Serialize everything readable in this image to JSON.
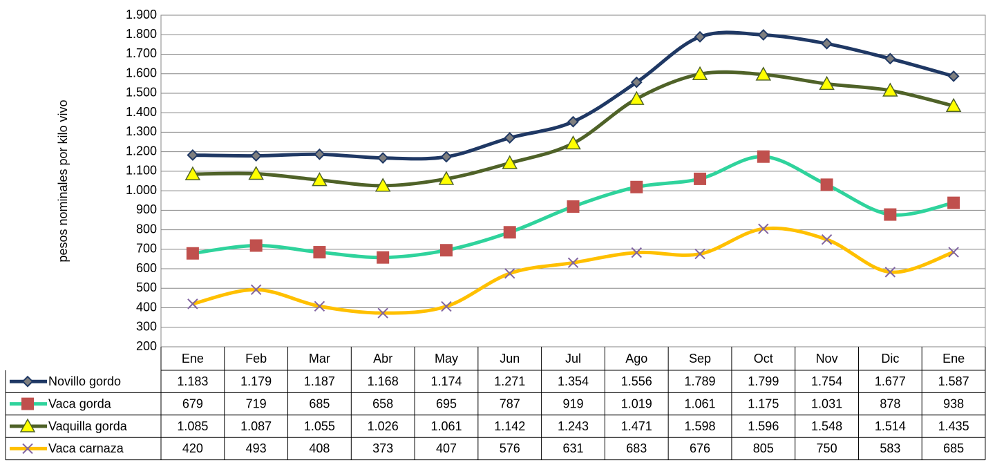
{
  "chart_data": {
    "type": "line",
    "y_label": "pesos nominales por kilo vivo",
    "categories": [
      "Ene",
      "Feb",
      "Mar",
      "Abr",
      "May",
      "Jun",
      "Jul",
      "Ago",
      "Sep",
      "Oct",
      "Nov",
      "Dic",
      "Ene"
    ],
    "series": [
      {
        "name": "Novillo gordo",
        "color": "#1f3864",
        "marker": "diamond",
        "marker_color": "#7f7f7f",
        "values": [
          1183,
          1179,
          1187,
          1168,
          1174,
          1271,
          1354,
          1556,
          1789,
          1799,
          1754,
          1677,
          1587
        ],
        "value_labels": [
          "1.183",
          "1.179",
          "1.187",
          "1.168",
          "1.174",
          "1.271",
          "1.354",
          "1.556",
          "1.789",
          "1.799",
          "1.754",
          "1.677",
          "1.587"
        ]
      },
      {
        "name": "Vaca gorda",
        "color": "#2fd39c",
        "marker": "square",
        "marker_color": "#c0504d",
        "values": [
          679,
          719,
          685,
          658,
          695,
          787,
          919,
          1019,
          1061,
          1175,
          1031,
          878,
          938
        ],
        "value_labels": [
          "679",
          "719",
          "685",
          "658",
          "695",
          "787",
          "919",
          "1.019",
          "1.061",
          "1.175",
          "1.031",
          "878",
          "938"
        ]
      },
      {
        "name": "Vaquilla gorda",
        "color": "#4f6228",
        "marker": "triangle",
        "marker_color": "#ffff00",
        "values": [
          1085,
          1087,
          1055,
          1026,
          1061,
          1142,
          1243,
          1471,
          1598,
          1596,
          1548,
          1514,
          1435
        ],
        "value_labels": [
          "1.085",
          "1.087",
          "1.055",
          "1.026",
          "1.061",
          "1.142",
          "1.243",
          "1.471",
          "1.598",
          "1.596",
          "1.548",
          "1.514",
          "1.435"
        ]
      },
      {
        "name": "Vaca carnaza",
        "color": "#ffc000",
        "marker": "x",
        "marker_color": "#8064a2",
        "values": [
          420,
          493,
          408,
          373,
          407,
          576,
          631,
          683,
          676,
          805,
          750,
          583,
          685
        ],
        "value_labels": [
          "420",
          "493",
          "408",
          "373",
          "407",
          "576",
          "631",
          "683",
          "676",
          "805",
          "750",
          "583",
          "685"
        ]
      }
    ],
    "ylim": [
      200,
      1900
    ],
    "yticks": [
      {
        "value": 200,
        "label": "200"
      },
      {
        "value": 300,
        "label": "300"
      },
      {
        "value": 400,
        "label": "400"
      },
      {
        "value": 500,
        "label": "500"
      },
      {
        "value": 600,
        "label": "600"
      },
      {
        "value": 700,
        "label": "700"
      },
      {
        "value": 800,
        "label": "800"
      },
      {
        "value": 900,
        "label": "900"
      },
      {
        "value": 1000,
        "label": "1.000"
      },
      {
        "value": 1100,
        "label": "1.100"
      },
      {
        "value": 1200,
        "label": "1.200"
      },
      {
        "value": 1300,
        "label": "1.300"
      },
      {
        "value": 1400,
        "label": "1.400"
      },
      {
        "value": 1500,
        "label": "1.500"
      },
      {
        "value": 1600,
        "label": "1.600"
      },
      {
        "value": 1700,
        "label": "1.700"
      },
      {
        "value": 1800,
        "label": "1.800"
      },
      {
        "value": 1900,
        "label": "1.900"
      }
    ],
    "grid": true,
    "smooth": true
  }
}
